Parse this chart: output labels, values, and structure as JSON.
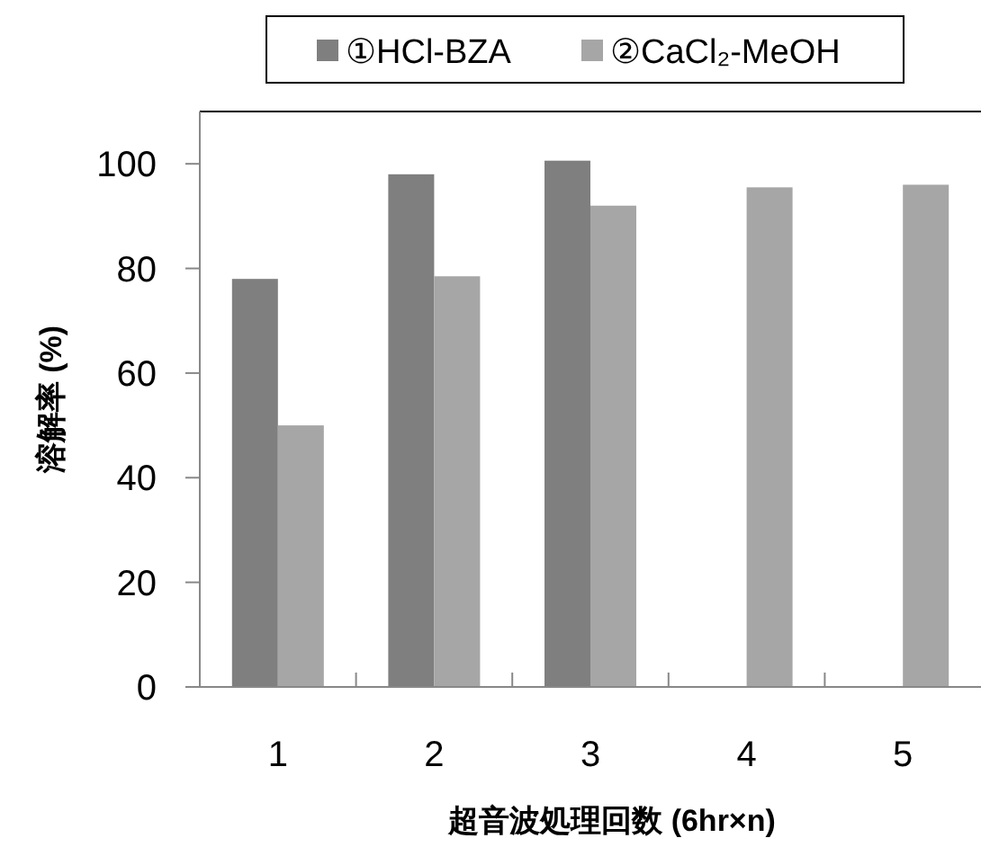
{
  "chart_data": {
    "type": "bar",
    "xlabel": "超音波処理回数 (6hr×n)",
    "ylabel": "溶解率 (%)",
    "categories": [
      "1",
      "2",
      "3",
      "4",
      "5"
    ],
    "series": [
      {
        "name": "①HCl-BZA",
        "color": "#7f7f7f",
        "values": [
          78,
          98,
          100.6,
          null,
          null
        ]
      },
      {
        "name": "②CaCl₂-MeOH",
        "color": "#a6a6a6",
        "values": [
          50,
          78.5,
          92,
          95.5,
          96
        ]
      }
    ],
    "ylim": [
      0,
      110
    ],
    "yticks": [
      0,
      20,
      40,
      60,
      80,
      100
    ],
    "grid": false,
    "legend": "top"
  }
}
